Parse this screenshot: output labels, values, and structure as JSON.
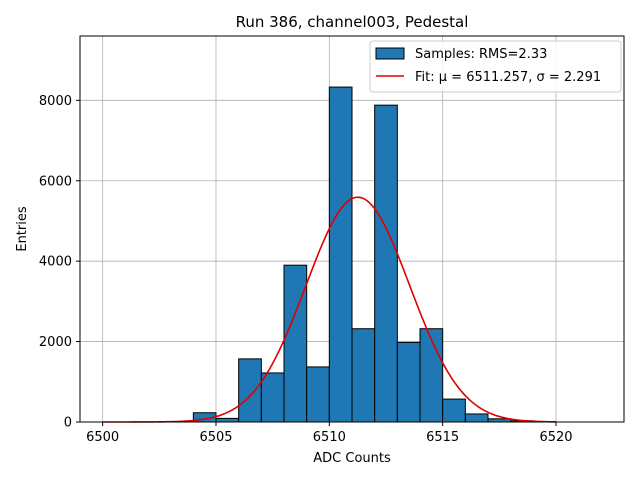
{
  "chart_data": {
    "type": "bar",
    "title": "Run 386, channel003, Pedestal",
    "xlabel": "ADC Counts",
    "ylabel": "Entries",
    "xlim": [
      6499,
      6523
    ],
    "ylim": [
      0,
      9600
    ],
    "xticks": [
      6500,
      6505,
      6510,
      6515,
      6520
    ],
    "yticks": [
      0,
      2000,
      4000,
      6000,
      8000
    ],
    "grid": true,
    "legend_position": "top-right",
    "histogram": {
      "name": "Samples: RMS=2.33",
      "color": "#1f77b4",
      "edge_color": "#000000",
      "bin_edges": [
        6504.0,
        6505.0,
        6506.0,
        6507.0,
        6508.0,
        6509.0,
        6510.0,
        6511.0,
        6512.0,
        6513.0,
        6514.0,
        6515.0,
        6516.0,
        6517.0,
        6518.0,
        6519.0
      ],
      "counts": [
        230,
        90,
        1570,
        1220,
        3900,
        1370,
        8330,
        2320,
        7880,
        1980,
        2320,
        570,
        200,
        80,
        30
      ]
    },
    "fit": {
      "name_prefix": "Fit: ",
      "mu_label": "μ = 6511.257",
      "sep": ", ",
      "sigma_label": "σ = 2.291",
      "mu": 6511.257,
      "sigma": 2.291,
      "amplitude": 5590,
      "x_range": [
        6500,
        6520
      ],
      "color": "#e00000"
    }
  }
}
